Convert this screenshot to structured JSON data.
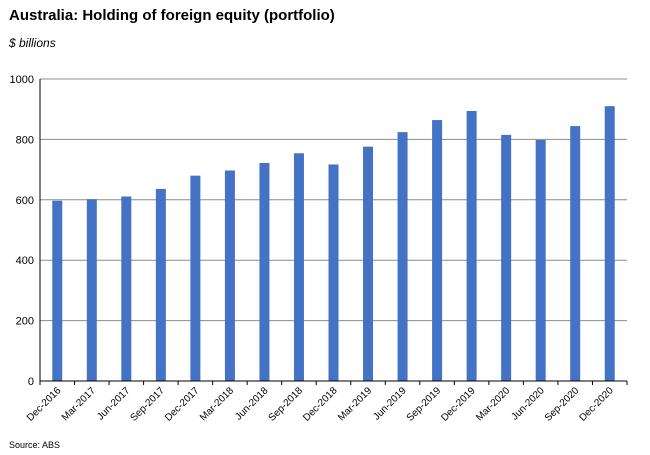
{
  "chart_data": {
    "type": "bar",
    "title": "Australia: Holding of foreign equity (portfolio)",
    "subtitle": "$ billions",
    "source": "Source: ABS",
    "categories": [
      "Dec-2016",
      "Mar-2017",
      "Jun-2017",
      "Sep-2017",
      "Dec-2017",
      "Mar-2018",
      "Jun-2018",
      "Sep-2018",
      "Dec-2018",
      "Mar-2019",
      "Jun-2019",
      "Sep-2019",
      "Dec-2019",
      "Mar-2020",
      "Jun-2020",
      "Sep-2020",
      "Dec-2020"
    ],
    "values": [
      597,
      602,
      611,
      636,
      680,
      697,
      722,
      754,
      717,
      776,
      824,
      864,
      894,
      815,
      798,
      844,
      910
    ],
    "ylim": [
      0,
      1000
    ],
    "yticks": [
      0,
      200,
      400,
      600,
      800,
      1000
    ],
    "grid": true,
    "bar_color": "#4472C4"
  }
}
